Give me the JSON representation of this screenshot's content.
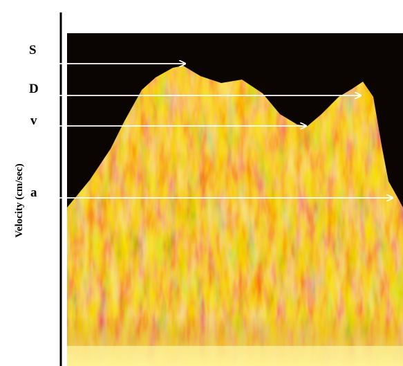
{
  "y_axis_label": "Velocity (cm/sec)",
  "annotations": [
    {
      "label": "S"
    },
    {
      "label": "D"
    },
    {
      "label": "v"
    },
    {
      "label": "a"
    }
  ]
}
